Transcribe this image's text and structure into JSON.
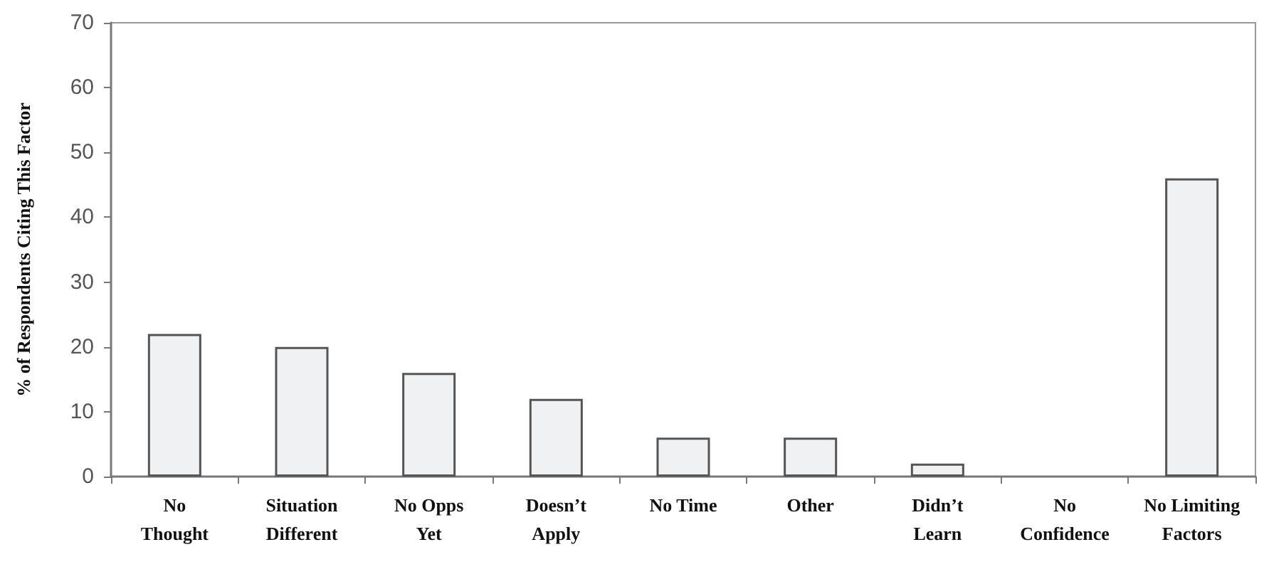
{
  "chart_data": {
    "type": "bar",
    "ylabel": "% of Respondents Citing This Factor",
    "categories": [
      "No\nThought",
      "Situation\nDifferent",
      "No Opps\nYet",
      "Doesn’t\nApply",
      "No Time",
      "Other",
      "Didn’t\nLearn",
      "No\nConfidence",
      "No Limiting\nFactors"
    ],
    "values": [
      22,
      20,
      16,
      12,
      6,
      6,
      2,
      0,
      46
    ],
    "color": "#f0f1f3",
    "ylim": [
      0,
      70
    ],
    "yticks": [
      0,
      10,
      20,
      30,
      40,
      50,
      60,
      70
    ],
    "grid": false
  }
}
